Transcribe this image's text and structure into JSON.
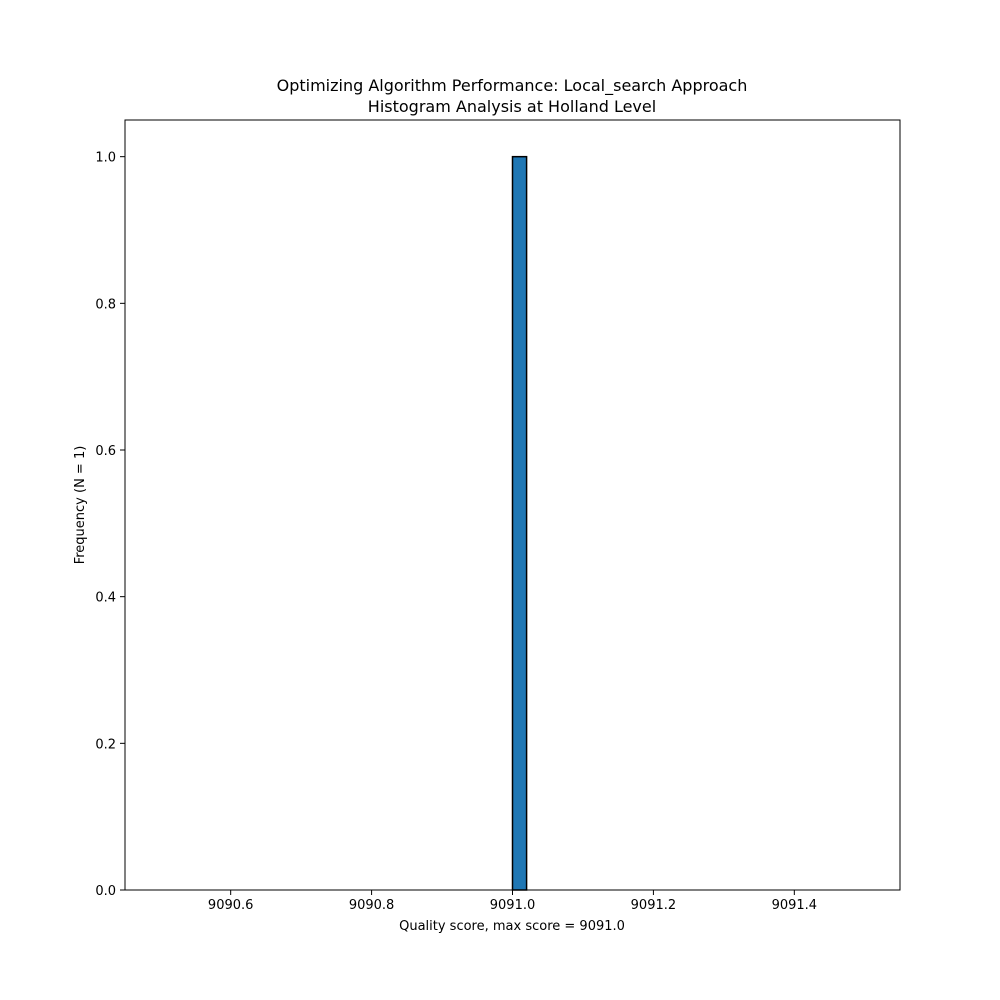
{
  "chart_data": {
    "type": "bar",
    "title": "Optimizing Algorithm Performance: Local_search Approach",
    "subtitle": "Histogram Analysis at Holland Level",
    "xlabel": "Quality score, max score = 9091.0",
    "ylabel": "Frequency (N = 1)",
    "xlim": [
      9090.45,
      9091.55
    ],
    "ylim": [
      0,
      1.05
    ],
    "x_ticks": [
      9090.6,
      9090.8,
      9091.0,
      9091.2,
      9091.4
    ],
    "x_tick_labels": [
      "9090.6",
      "9090.8",
      "9091.0",
      "9091.2",
      "9091.4"
    ],
    "y_ticks": [
      0.0,
      0.2,
      0.4,
      0.6,
      0.8,
      1.0
    ],
    "y_tick_labels": [
      "0.0",
      "0.2",
      "0.4",
      "0.6",
      "0.8",
      "1.0"
    ],
    "bins": {
      "start": 9090.5,
      "end": 9091.5,
      "count": 50,
      "values": [
        0,
        0,
        0,
        0,
        0,
        0,
        0,
        0,
        0,
        0,
        0,
        0,
        0,
        0,
        0,
        0,
        0,
        0,
        0,
        0,
        0,
        0,
        0,
        0,
        0,
        1,
        0,
        0,
        0,
        0,
        0,
        0,
        0,
        0,
        0,
        0,
        0,
        0,
        0,
        0,
        0,
        0,
        0,
        0,
        0,
        0,
        0,
        0,
        0,
        0
      ]
    },
    "bar_color": "#1f77b4",
    "edge_color": "#000000",
    "grid": false,
    "legend": "none"
  }
}
